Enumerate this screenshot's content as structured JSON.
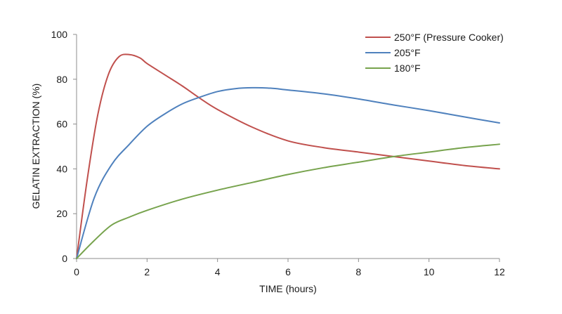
{
  "chart_data": {
    "type": "line",
    "title": "",
    "xlabel": "TIME (hours)",
    "ylabel": "GELATIN EXTRACTION (%)",
    "xlim": [
      0,
      12
    ],
    "ylim": [
      0,
      100
    ],
    "xticks": [
      0,
      2,
      4,
      6,
      8,
      10,
      12
    ],
    "yticks": [
      0,
      20,
      40,
      60,
      80,
      100
    ],
    "grid": false,
    "legend": "top-right",
    "series": [
      {
        "name": "250°F (Pressure Cooker)",
        "color": "#c0504d",
        "x": [
          0,
          0.3,
          0.6,
          0.9,
          1.2,
          1.5,
          1.8,
          2.0,
          2.5,
          3.0,
          3.5,
          4.0,
          5.0,
          6.0,
          7.0,
          8.0,
          9.0,
          10.0,
          11.0,
          12.0
        ],
        "y": [
          0,
          35,
          64,
          82,
          90,
          91,
          89.5,
          87,
          82,
          77,
          71.5,
          66.5,
          58.5,
          52.5,
          49.5,
          47.5,
          45.5,
          43.5,
          41.5,
          40
        ]
      },
      {
        "name": "205°F",
        "color": "#4f81bd",
        "x": [
          0,
          0.5,
          1.0,
          1.5,
          2.0,
          2.5,
          3.0,
          3.5,
          4.0,
          4.5,
          5.0,
          5.5,
          6.0,
          7.0,
          8.0,
          9.0,
          10.0,
          11.0,
          12.0
        ],
        "y": [
          0,
          27,
          42,
          51,
          59,
          64.5,
          69,
          72,
          74.5,
          75.8,
          76.2,
          76,
          75.2,
          73.5,
          71.2,
          68.5,
          66,
          63.2,
          60.5
        ]
      },
      {
        "name": "180°F",
        "color": "#77a34d",
        "x": [
          0,
          0.5,
          1.0,
          1.5,
          2.0,
          3.0,
          4.0,
          5.0,
          6.0,
          7.0,
          8.0,
          9.0,
          10.0,
          11.0,
          12.0
        ],
        "y": [
          0,
          8,
          15,
          18.5,
          21.5,
          26.5,
          30.5,
          34,
          37.5,
          40.5,
          43,
          45.5,
          47.5,
          49.5,
          51
        ]
      }
    ]
  }
}
